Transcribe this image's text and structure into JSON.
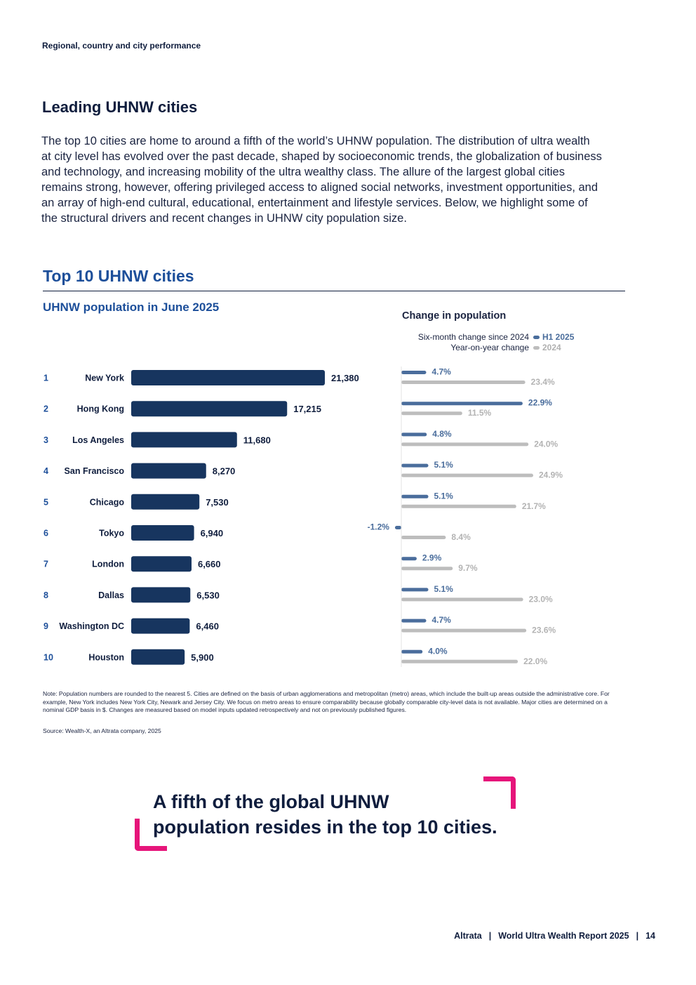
{
  "header": {
    "section": "Regional, country and city performance"
  },
  "heading": "Leading UHNW cities",
  "intro": "The top 10 cities are home to around a fifth of the world’s UHNW population. The distribution of ultra wealth at city level has evolved over the past decade, shaped by socioeconomic trends, the globalization of business and technology, and increasing mobility of the ultra wealthy class. The allure of the largest global cities remains strong, however, offering privileged access to aligned social networks, investment opportunities, and an array of high-end cultural, educational, entertainment and lifestyle services. Below, we highlight some of the structural drivers and recent changes in UHNW city population size.",
  "chart_data": [
    {
      "type": "bar",
      "orientation": "horizontal",
      "title": "Top 10 UHNW cities",
      "subtitle": "UHNW population in June 2025",
      "ranks": [
        "1",
        "2",
        "3",
        "4",
        "5",
        "6",
        "7",
        "8",
        "9",
        "10"
      ],
      "categories": [
        "New York",
        "Hong Kong",
        "Los Angeles",
        "San Francisco",
        "Chicago",
        "Tokyo",
        "London",
        "Dallas",
        "Washington DC",
        "Houston"
      ],
      "values": [
        21380,
        17215,
        11680,
        8270,
        7530,
        6940,
        6660,
        6530,
        6460,
        5900
      ],
      "value_labels": [
        "21,380",
        "17,215",
        "11,680",
        "8,270",
        "7,530",
        "6,940",
        "6,660",
        "6,530",
        "6,460",
        "5,900"
      ],
      "xlim": [
        0,
        21380
      ],
      "color": "#17355f"
    },
    {
      "type": "bar",
      "orientation": "horizontal",
      "title": "Change in population",
      "categories": [
        "New York",
        "Hong Kong",
        "Los Angeles",
        "San Francisco",
        "Chicago",
        "Tokyo",
        "London",
        "Dallas",
        "Washington DC",
        "Houston"
      ],
      "series": [
        {
          "name": "H1 2025",
          "description": "Six-month change since 2024",
          "color": "#4a6d9c",
          "values": [
            4.7,
            22.9,
            4.8,
            5.1,
            5.1,
            -1.2,
            2.9,
            5.1,
            4.7,
            4.0
          ],
          "labels": [
            "4.7%",
            "22.9%",
            "4.8%",
            "5.1%",
            "5.1%",
            "-1.2%",
            "2.9%",
            "5.1%",
            "4.7%",
            "4.0%"
          ]
        },
        {
          "name": "2024",
          "description": "Year-on-year change",
          "color": "#bdbdbd",
          "values": [
            23.4,
            11.5,
            24.0,
            24.9,
            21.7,
            8.4,
            9.7,
            23.0,
            23.6,
            22.0
          ],
          "labels": [
            "23.4%",
            "11.5%",
            "24.0%",
            "24.9%",
            "21.7%",
            "8.4%",
            "9.7%",
            "23.0%",
            "23.6%",
            "22.0%"
          ]
        }
      ],
      "xlim": [
        -1.2,
        24.9
      ]
    }
  ],
  "legend": {
    "h1_desc": "Six-month change since 2024",
    "h1_key": "H1 2025",
    "yoy_desc": "Year-on-year change",
    "yoy_key": "2024"
  },
  "note": "Note: Population numbers are rounded to the nearest 5. Cities are defined on the basis of urban agglomerations and metropolitan (metro) areas, which include the built-up areas outside the administrative core. For example, New York includes New York City, Newark and Jersey City. We focus on metro areas to ensure comparability because globally comparable city-level data is not available. Major cities are determined on a nominal GDP basis in $. Changes are measured based on model inputs updated retrospectively and not on previously published figures.",
  "source": "Source: Wealth-X, an Altrata company, 2025",
  "callout": {
    "line1": "A fifth of the global UHNW",
    "line2": "population resides in the top 10 cities."
  },
  "footer": {
    "brand": "Altrata",
    "report": "World Ultra Wealth Report 2025",
    "page": "14"
  },
  "colors": {
    "navy": "#0f1d3d",
    "blue": "#1d4f9a",
    "pink": "#e6157a"
  }
}
